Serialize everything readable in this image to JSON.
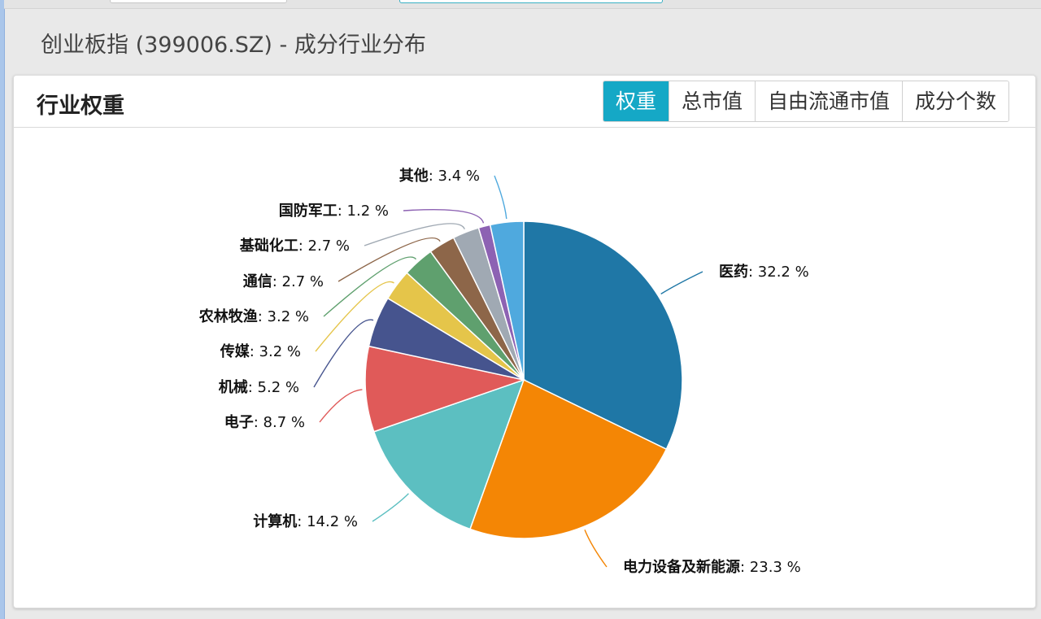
{
  "header": {
    "title": "创业板指 (399006.SZ) - 成分行业分布"
  },
  "card": {
    "title": "行业权重",
    "tabs": [
      {
        "label": "权重",
        "active": true
      },
      {
        "label": "总市值",
        "active": false
      },
      {
        "label": "自由流通市值",
        "active": false
      },
      {
        "label": "成分个数",
        "active": false
      }
    ]
  },
  "colors": {
    "accent": "#15a8c6"
  },
  "chart_data": {
    "type": "pie",
    "unit": "%",
    "slices": [
      {
        "name": "医药",
        "value": 32.2,
        "color": "#1f77a6"
      },
      {
        "name": "电力设备及新能源",
        "value": 23.3,
        "color": "#f48605"
      },
      {
        "name": "计算机",
        "value": 14.2,
        "color": "#5cbfc1"
      },
      {
        "name": "电子",
        "value": 8.7,
        "color": "#e05a59"
      },
      {
        "name": "机械",
        "value": 5.2,
        "color": "#46548e"
      },
      {
        "name": "传媒",
        "value": 3.2,
        "color": "#e5c54a"
      },
      {
        "name": "农林牧渔",
        "value": 3.2,
        "color": "#5fa06e"
      },
      {
        "name": "通信",
        "value": 2.7,
        "color": "#8d6649"
      },
      {
        "name": "基础化工",
        "value": 2.7,
        "color": "#a0a9b3"
      },
      {
        "name": "国防军工",
        "value": 1.2,
        "color": "#8d62b3"
      },
      {
        "name": "其他",
        "value": 3.4,
        "color": "#4fa9de"
      }
    ]
  }
}
